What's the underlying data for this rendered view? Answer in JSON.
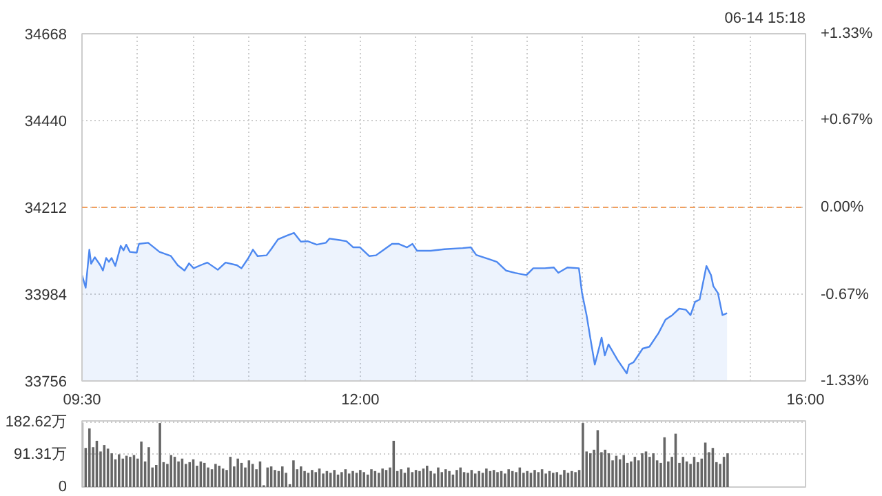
{
  "chart_data": [
    {
      "type": "area",
      "annotations": [
        "06-14 15:18"
      ],
      "x": [
        9.5,
        9.533,
        9.566,
        9.582,
        9.615,
        9.664,
        9.688,
        9.717,
        9.742,
        9.766,
        9.799,
        9.848,
        9.873,
        9.897,
        9.93,
        9.991,
        10.012,
        10.094,
        10.196,
        10.299,
        10.36,
        10.421,
        10.462,
        10.503,
        10.565,
        10.626,
        10.72,
        10.79,
        10.892,
        10.933,
        10.995,
        11.036,
        11.077,
        11.158,
        11.199,
        11.261,
        11.343,
        11.404,
        11.466,
        11.527,
        11.609,
        11.691,
        11.724,
        11.814,
        11.875,
        11.937,
        11.998,
        12.08,
        12.141,
        12.203,
        12.285,
        12.346,
        12.42,
        12.469,
        12.51,
        12.633,
        12.756,
        12.92,
        12.993,
        13.042,
        13.165,
        13.227,
        13.309,
        13.39,
        13.493,
        13.554,
        13.657,
        13.739,
        13.779,
        13.861,
        13.964,
        13.992,
        14.033,
        14.066,
        14.107,
        14.148,
        14.168,
        14.197,
        14.23,
        14.312,
        14.394,
        14.414,
        14.455,
        14.496,
        14.537,
        14.598,
        14.68,
        14.742,
        14.803,
        14.865,
        14.926,
        14.967,
        15.008,
        15.049,
        15.11,
        15.151,
        15.172,
        15.213,
        15.254,
        15.295
      ],
      "series": [
        {
          "color": "#4d88f0",
          "values": [
            34034,
            34001,
            34101,
            34064,
            34081,
            34060,
            34046,
            34079,
            34069,
            34079,
            34058,
            34111,
            34099,
            34114,
            34095,
            34093,
            34116,
            34119,
            34095,
            34084,
            34060,
            34046,
            34065,
            34052,
            34060,
            34067,
            34048,
            34067,
            34060,
            34052,
            34079,
            34101,
            34084,
            34086,
            34102,
            34128,
            34138,
            34145,
            34122,
            34123,
            34114,
            34119,
            34130,
            34126,
            34123,
            34107,
            34107,
            34084,
            34086,
            34099,
            34116,
            34116,
            34107,
            34116,
            34098,
            34098,
            34102,
            34105,
            34107,
            34087,
            34075,
            34069,
            34046,
            34040,
            34034,
            34052,
            34052,
            34054,
            34040,
            34054,
            34052,
            33987,
            33929,
            33870,
            33799,
            33846,
            33870,
            33823,
            33852,
            33811,
            33776,
            33799,
            33805,
            33823,
            33841,
            33846,
            33882,
            33917,
            33929,
            33946,
            33943,
            33929,
            33964,
            33970,
            34058,
            34034,
            34005,
            33987,
            33929,
            33934
          ]
        }
      ],
      "xlim": [
        9.5,
        16
      ],
      "xticks": [
        {
          "value": 9.5,
          "label": "09:30"
        },
        {
          "value": 10,
          "label": null
        },
        {
          "value": 10.5,
          "label": null
        },
        {
          "value": 11,
          "label": null
        },
        {
          "value": 11.5,
          "label": null
        },
        {
          "value": 12,
          "label": "12:00"
        },
        {
          "value": 12.5,
          "label": null
        },
        {
          "value": 13,
          "label": null
        },
        {
          "value": 13.5,
          "label": null
        },
        {
          "value": 14,
          "label": null
        },
        {
          "value": 14.5,
          "label": null
        },
        {
          "value": 15,
          "label": null
        },
        {
          "value": 15.5,
          "label": null
        },
        {
          "value": 16,
          "label": "16:00"
        }
      ],
      "ylim": [
        33756,
        34668
      ],
      "yticks": [
        33756,
        33984,
        34212,
        34440,
        34668
      ],
      "y2lim": [
        -1.33,
        1.33
      ],
      "y2ticks": [
        {
          "value": -1.33,
          "label": "-1.33%"
        },
        {
          "value": -0.67,
          "label": "-0.67%"
        },
        {
          "value": 0,
          "label": "0.00%"
        },
        {
          "value": 0.67,
          "label": "+0.67%"
        },
        {
          "value": 1.33,
          "label": "+1.33%"
        }
      ],
      "ref_lines": [
        {
          "axis": "y",
          "value": 34212,
          "color": "#f0a060",
          "line_style": "dashed"
        }
      ],
      "grid": true
    },
    {
      "type": "bar",
      "tick_labels": "y",
      "x": [
        9.5,
        9.533,
        9.567,
        9.6,
        9.633,
        9.667,
        9.7,
        9.733,
        9.767,
        9.8,
        9.833,
        9.867,
        9.9,
        9.933,
        9.967,
        10,
        10.033,
        10.067,
        10.1,
        10.133,
        10.167,
        10.2,
        10.233,
        10.267,
        10.3,
        10.333,
        10.367,
        10.4,
        10.433,
        10.467,
        10.5,
        10.533,
        10.567,
        10.6,
        10.633,
        10.667,
        10.7,
        10.733,
        10.767,
        10.8,
        10.833,
        10.867,
        10.9,
        10.933,
        10.967,
        11,
        11.033,
        11.067,
        11.1,
        11.133,
        11.167,
        11.2,
        11.233,
        11.267,
        11.3,
        11.333,
        11.367,
        11.4,
        11.433,
        11.467,
        11.5,
        11.533,
        11.567,
        11.6,
        11.633,
        11.667,
        11.7,
        11.733,
        11.767,
        11.8,
        11.833,
        11.867,
        11.9,
        11.933,
        11.967,
        12,
        12.033,
        12.067,
        12.1,
        12.133,
        12.167,
        12.2,
        12.233,
        12.267,
        12.3,
        12.333,
        12.367,
        12.4,
        12.433,
        12.467,
        12.5,
        12.533,
        12.567,
        12.6,
        12.633,
        12.667,
        12.7,
        12.733,
        12.767,
        12.8,
        12.833,
        12.867,
        12.9,
        12.933,
        12.967,
        13,
        13.033,
        13.067,
        13.1,
        13.133,
        13.167,
        13.2,
        13.233,
        13.267,
        13.3,
        13.333,
        13.367,
        13.4,
        13.433,
        13.467,
        13.5,
        13.533,
        13.567,
        13.6,
        13.633,
        13.667,
        13.7,
        13.733,
        13.767,
        13.8,
        13.833,
        13.867,
        13.9,
        13.933,
        13.967,
        14,
        14.033,
        14.067,
        14.1,
        14.133,
        14.167,
        14.2,
        14.233,
        14.267,
        14.3,
        14.333,
        14.367,
        14.4,
        14.433,
        14.467,
        14.5,
        14.533,
        14.567,
        14.6,
        14.633,
        14.667,
        14.7,
        14.733,
        14.767,
        14.8,
        14.833,
        14.867,
        14.9,
        14.933,
        14.967,
        15,
        15.033,
        15.067,
        15.1,
        15.133,
        15.167,
        15.2,
        15.233,
        15.267,
        15.3
      ],
      "series": [
        {
          "color": "#666666",
          "values": [
            180,
            110,
            165,
            112,
            130,
            100,
            118,
            108,
            95,
            78,
            92,
            80,
            88,
            85,
            90,
            80,
            128,
            72,
            112,
            55,
            62,
            180,
            70,
            65,
            90,
            85,
            72,
            80,
            65,
            70,
            78,
            60,
            72,
            68,
            55,
            50,
            65,
            60,
            52,
            48,
            85,
            58,
            80,
            68,
            55,
            75,
            65,
            50,
            72,
            5,
            55,
            58,
            48,
            45,
            58,
            40,
            8,
            75,
            50,
            58,
            45,
            40,
            48,
            42,
            52,
            38,
            45,
            40,
            48,
            35,
            42,
            50,
            38,
            45,
            40,
            48,
            42,
            35,
            50,
            45,
            40,
            52,
            48,
            55,
            130,
            45,
            50,
            40,
            55,
            42,
            48,
            45,
            52,
            60,
            45,
            38,
            55,
            42,
            50,
            45,
            35,
            48,
            55,
            42,
            40,
            48,
            38,
            45,
            40,
            52,
            45,
            48,
            42,
            45,
            38,
            50,
            45,
            42,
            55,
            40,
            45,
            40,
            48,
            42,
            50,
            38,
            45,
            40,
            42,
            35,
            48,
            40,
            45,
            42,
            48,
            180,
            100,
            95,
            105,
            160,
            98,
            105,
            95,
            75,
            88,
            78,
            90,
            68,
            72,
            85,
            75,
            95,
            100,
            85,
            95,
            75,
            68,
            140,
            72,
            85,
            150,
            68,
            85,
            72,
            65,
            85,
            70,
            80,
            125,
            98,
            110,
            70,
            65,
            85,
            95
          ]
        }
      ],
      "xlim": [
        9.5,
        16
      ],
      "xticks": [
        {
          "value": 9.5,
          "label": null
        },
        {
          "value": 16,
          "label": null
        }
      ],
      "ylim": [
        0,
        186
      ],
      "yticks": [
        {
          "value": 0,
          "label": "0"
        },
        {
          "value": 91.31,
          "label": "91.31万"
        },
        {
          "value": 182.62,
          "label": "182.62万"
        }
      ],
      "grid": "y"
    }
  ]
}
